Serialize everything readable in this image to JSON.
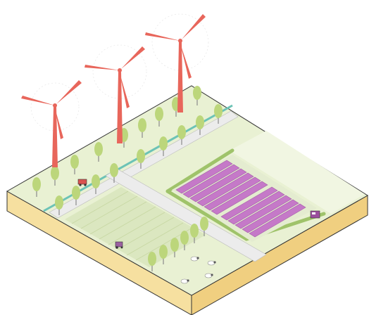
{
  "colors": {
    "background": "#ffffff",
    "grass": "#e9f1d3",
    "grass_light": "#f1f6e2",
    "soil_top": "#f9e6a6",
    "soil_left": "#f6e0a0",
    "soil_right": "#f0cf80",
    "edge_line": "#333333",
    "road": "#ececec",
    "canal": "#6cc3b6",
    "tree": "#bcd67b",
    "trunk": "#8a8a8a",
    "turbine": "#e8665b",
    "field": "#dbe7c0",
    "field_line": "#c7d7a2",
    "solar": "#c579c8",
    "solar_dark": "#a55ea9",
    "hedge": "#9fc36a",
    "sheep": "#ffffff",
    "car_red": "#d9534f",
    "car_purple": "#9b4f9e",
    "tractor": "#9a5fa0"
  },
  "icons": [
    "wind-turbine-icon",
    "tree-icon",
    "solar-panel-icon",
    "sheep-icon",
    "tractor-icon",
    "car-icon"
  ]
}
